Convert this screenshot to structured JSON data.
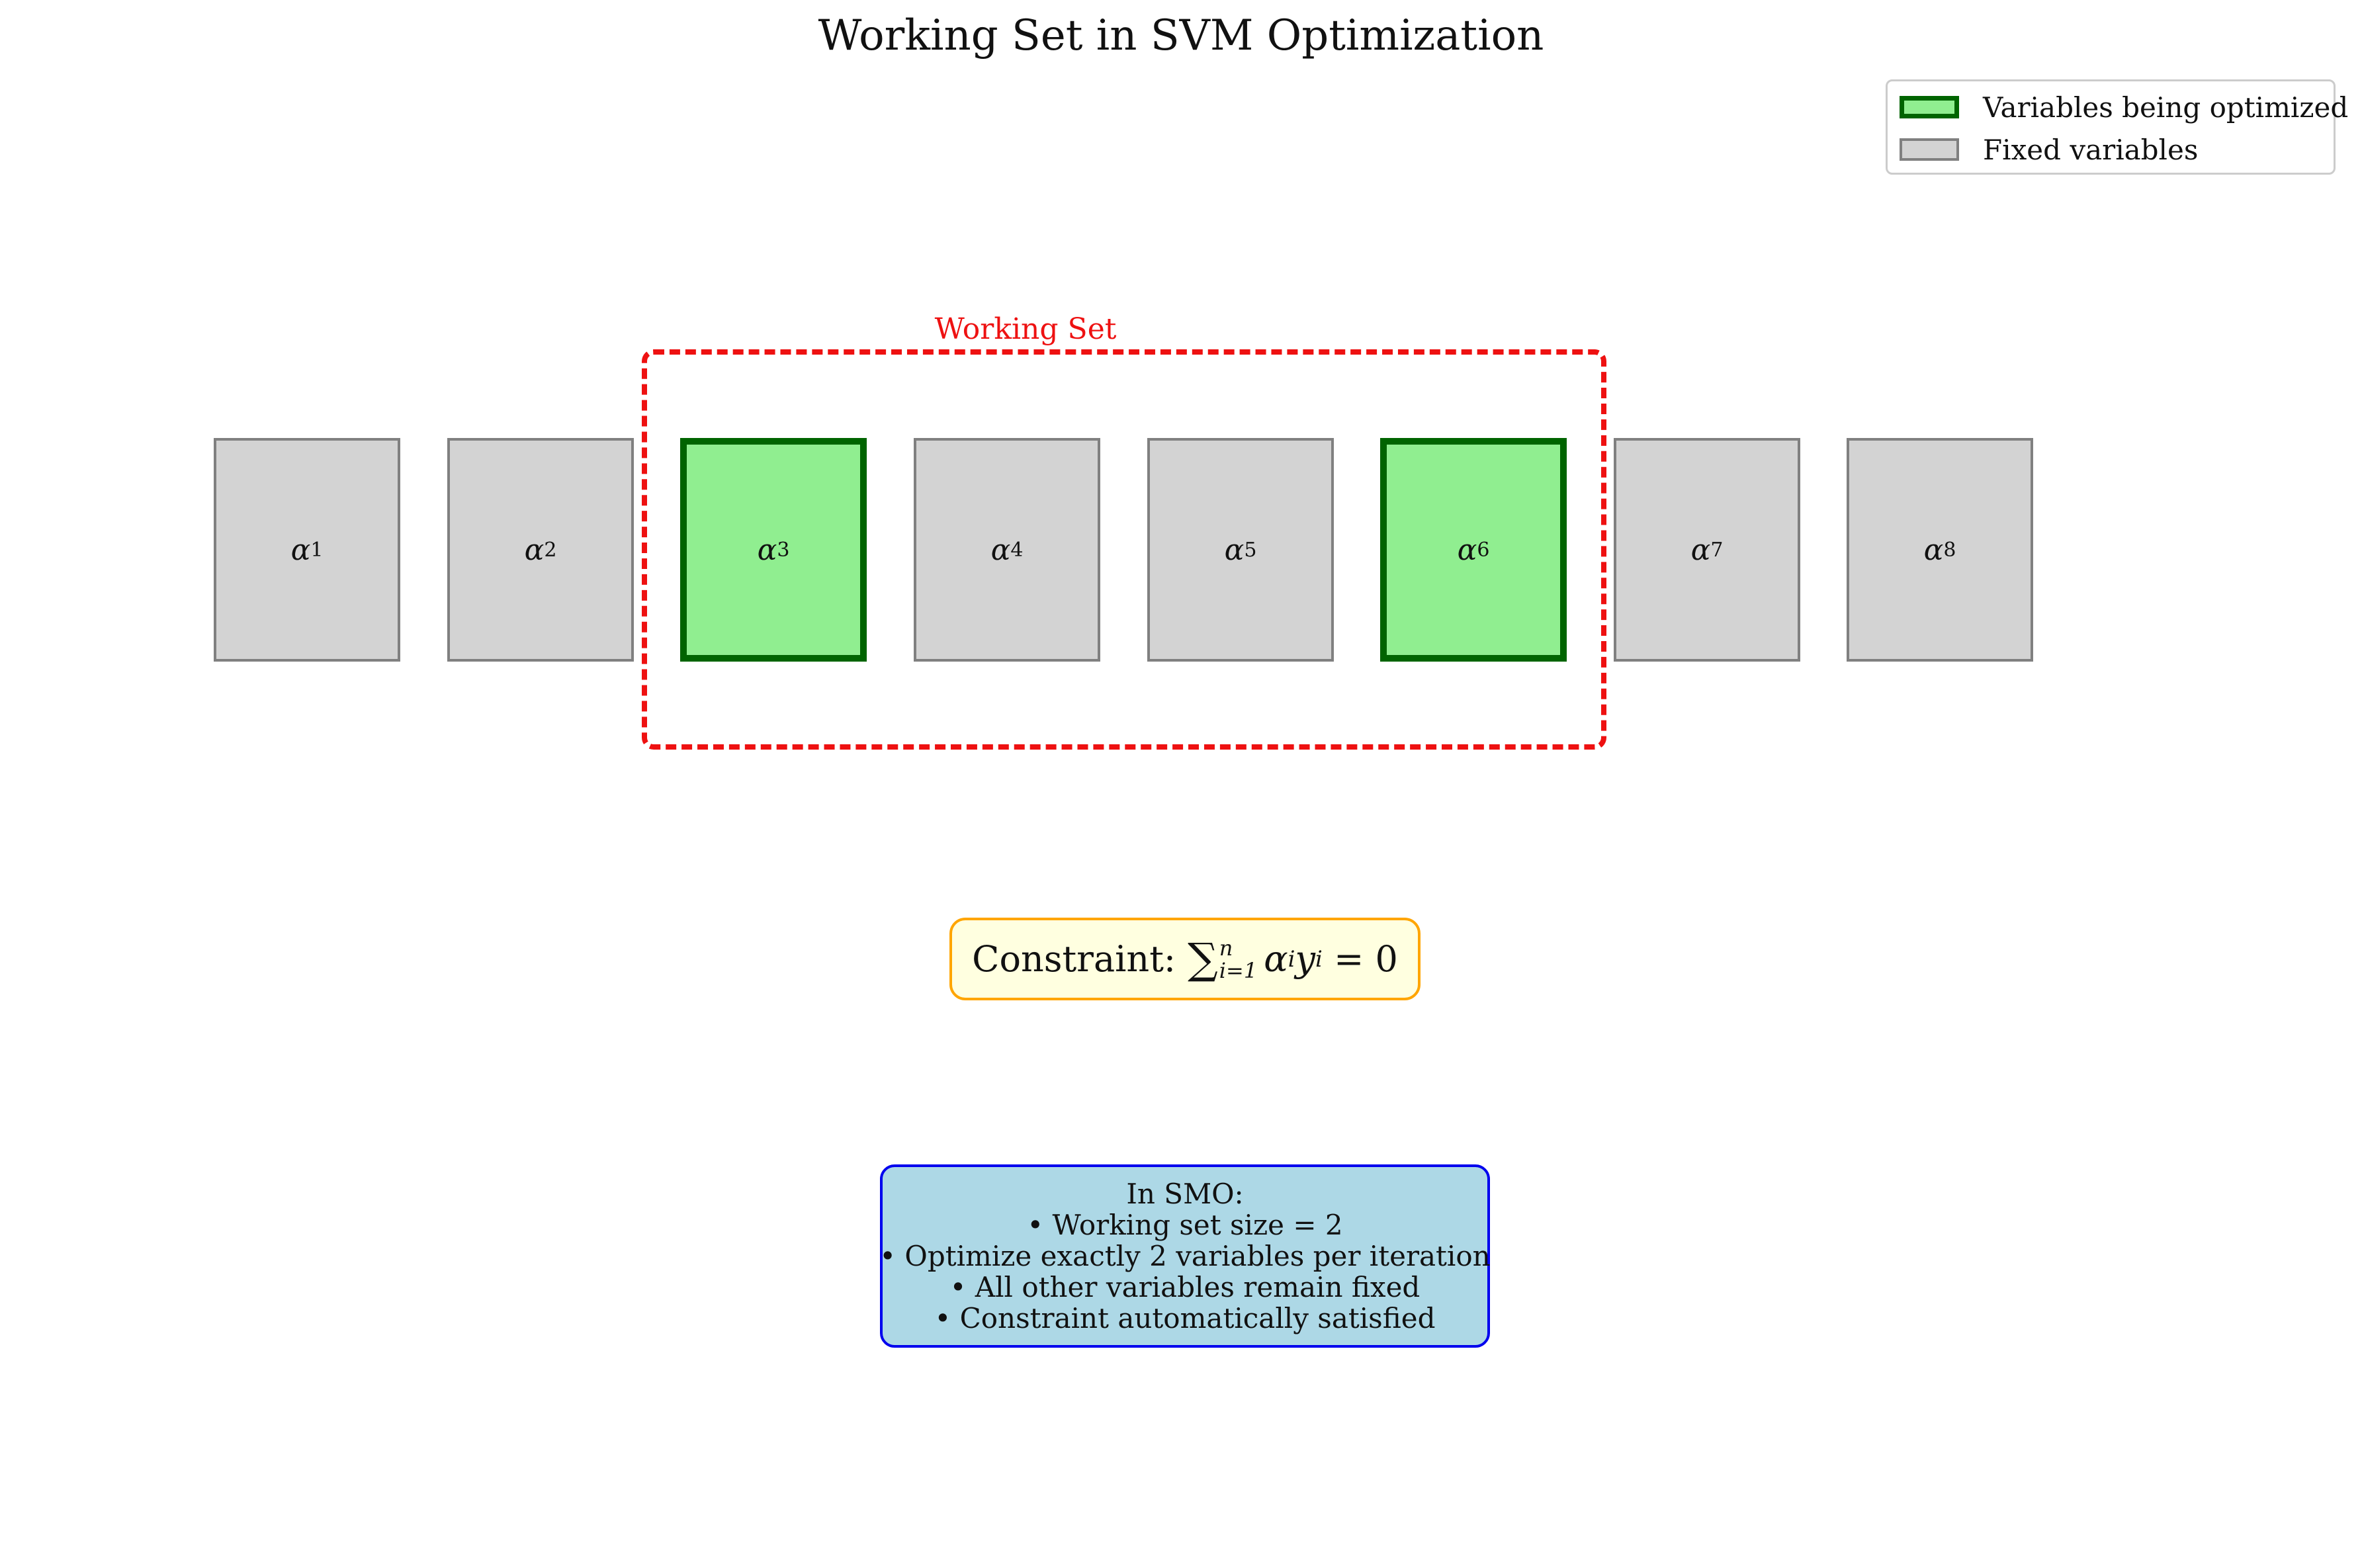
{
  "title": "Working Set in SVM Optimization",
  "legend": [
    {
      "label": "Variables being optimized",
      "fill": "#90ee90",
      "edge": "#006400"
    },
    {
      "label": "Fixed variables",
      "fill": "#d3d3d3",
      "edge": "#808080"
    }
  ],
  "working_set_label": "Working Set",
  "colors": {
    "optimized_fill": "#90ee90",
    "optimized_edge": "#006400",
    "fixed_fill": "#d3d3d3",
    "fixed_edge": "#808080",
    "working_set_outline": "#ee1111",
    "constraint_fill": "#ffffe0",
    "constraint_edge": "#ffa500",
    "info_fill": "#add8e6",
    "info_edge": "#0000ee"
  },
  "variables": [
    {
      "symbol": "α",
      "index": "1",
      "state": "fixed"
    },
    {
      "symbol": "α",
      "index": "2",
      "state": "fixed"
    },
    {
      "symbol": "α",
      "index": "3",
      "state": "optimized"
    },
    {
      "symbol": "α",
      "index": "4",
      "state": "fixed"
    },
    {
      "symbol": "α",
      "index": "5",
      "state": "fixed"
    },
    {
      "symbol": "α",
      "index": "6",
      "state": "optimized"
    },
    {
      "symbol": "α",
      "index": "7",
      "state": "fixed"
    },
    {
      "symbol": "α",
      "index": "8",
      "state": "fixed"
    }
  ],
  "constraint": {
    "prefix": "Constraint:",
    "sum_symbol": "∑",
    "upper": "n",
    "lower": "i=1",
    "term_a": "α",
    "sub_a": "i",
    "term_b": "y",
    "sub_b": "i",
    "rhs": " = 0"
  },
  "info": {
    "heading": "In SMO:",
    "lines": [
      "• Working set size = 2",
      "• Optimize exactly 2 variables per iteration",
      "• All other variables remain fixed",
      "• Constraint automatically satisfied"
    ]
  }
}
